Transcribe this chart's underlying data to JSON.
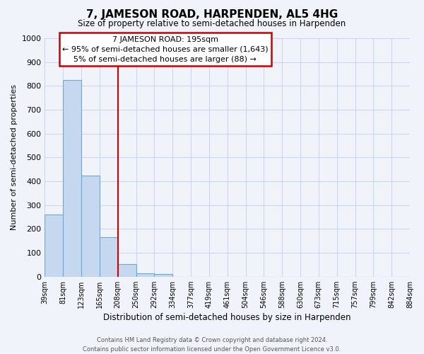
{
  "title": "7, JAMESON ROAD, HARPENDEN, AL5 4HG",
  "subtitle": "Size of property relative to semi-detached houses in Harpenden",
  "xlabel": "Distribution of semi-detached houses by size in Harpenden",
  "ylabel": "Number of semi-detached properties",
  "bar_values": [
    260,
    825,
    425,
    165,
    52,
    15,
    10,
    0,
    0,
    0,
    0,
    0,
    0,
    0,
    0,
    0,
    0,
    0,
    0,
    0
  ],
  "categories": [
    "39sqm",
    "81sqm",
    "123sqm",
    "165sqm",
    "208sqm",
    "250sqm",
    "292sqm",
    "334sqm",
    "377sqm",
    "419sqm",
    "461sqm",
    "504sqm",
    "546sqm",
    "588sqm",
    "630sqm",
    "673sqm",
    "715sqm",
    "757sqm",
    "799sqm",
    "842sqm",
    "884sqm"
  ],
  "bar_color": "#c5d8ef",
  "bar_edge_color": "#6aaad4",
  "vline_x_index": 4,
  "vline_color": "#cc0000",
  "ylim": [
    0,
    1000
  ],
  "yticks": [
    0,
    100,
    200,
    300,
    400,
    500,
    600,
    700,
    800,
    900,
    1000
  ],
  "annotation_title": "7 JAMESON ROAD: 195sqm",
  "annotation_line1": "← 95% of semi-detached houses are smaller (1,643)",
  "annotation_line2": "5% of semi-detached houses are larger (88) →",
  "annotation_box_facecolor": "#ffffff",
  "annotation_box_edgecolor": "#cc0000",
  "footer_line1": "Contains HM Land Registry data © Crown copyright and database right 2024.",
  "footer_line2": "Contains public sector information licensed under the Open Government Licence v3.0.",
  "background_color": "#f0f4fa",
  "grid_color": "#c8d4e8"
}
